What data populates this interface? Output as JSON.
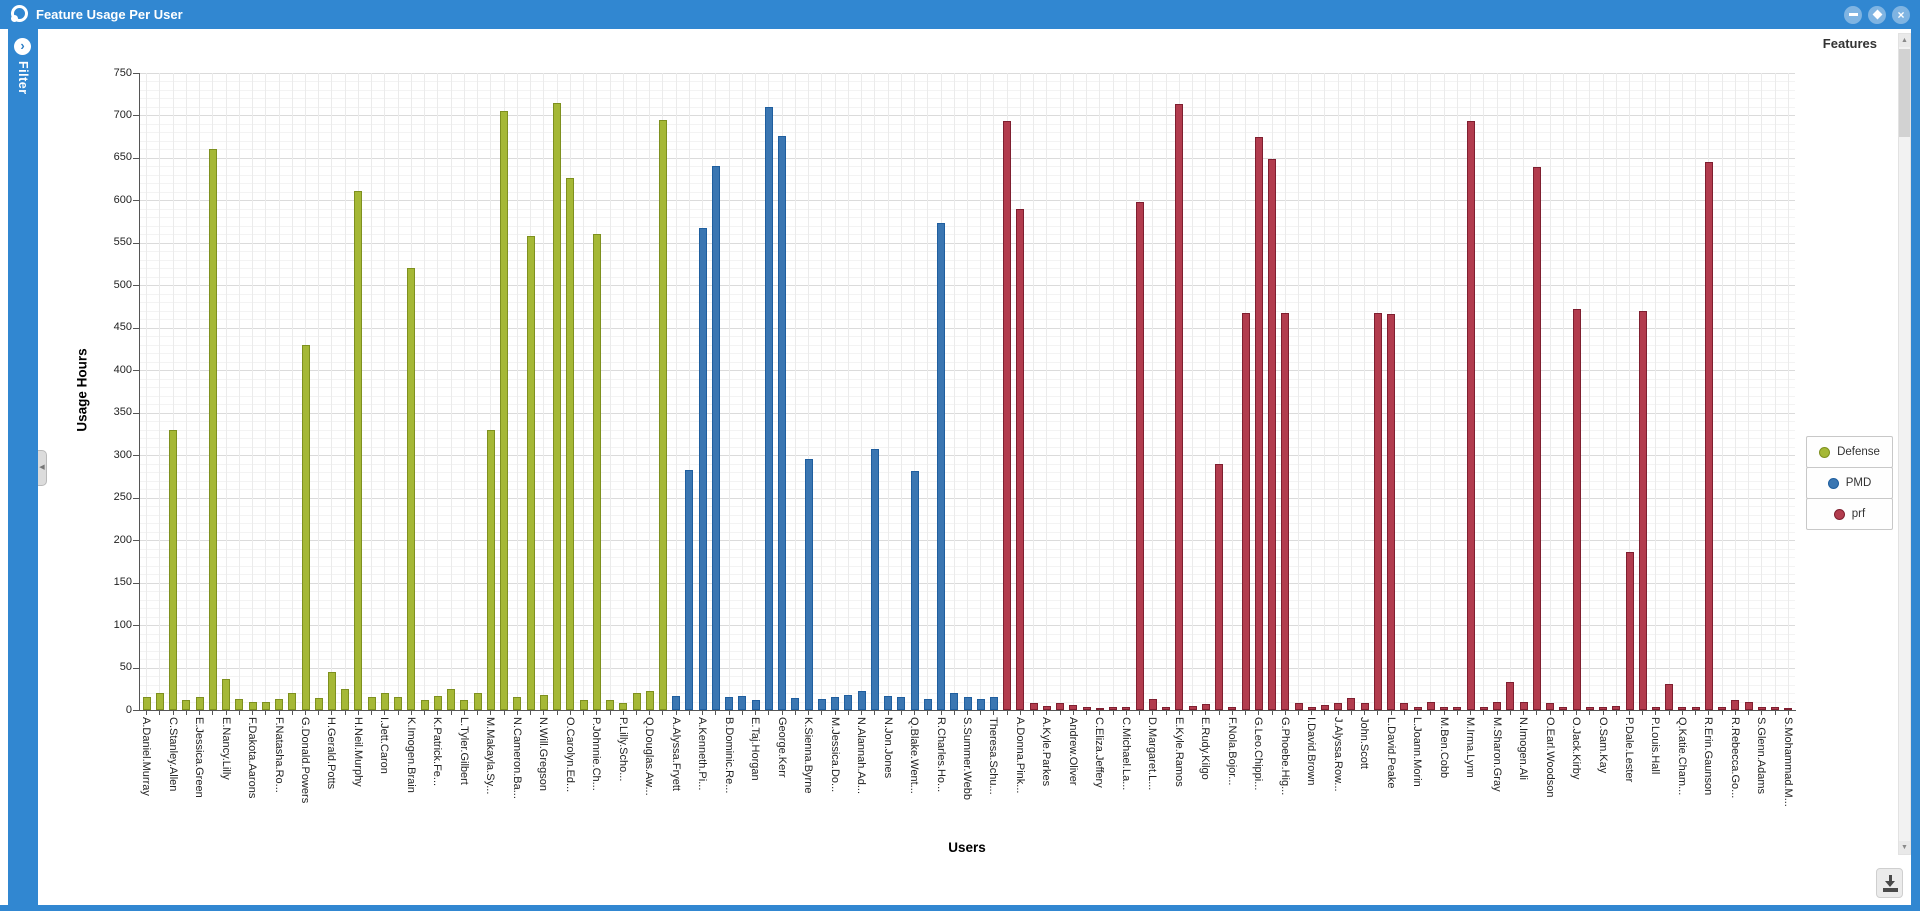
{
  "window": {
    "title": "Feature Usage Per User",
    "minimize_label": "minimize",
    "maximize_label": "maximize",
    "close_label": "close"
  },
  "sidebar": {
    "label": "Filter",
    "expand_icon": "chevron-right-icon"
  },
  "panel_header": "Features",
  "icons": {
    "app": "swirl-logo-icon",
    "download": "download-icon",
    "scroll_up": "up-arrow-icon",
    "scroll_down": "down-arrow-icon",
    "splitter": "collapse-left-icon"
  },
  "colors": {
    "titlebar": "#3187d1",
    "defense_fill": "#a5b836",
    "defense_border": "#7e901f",
    "pmd_fill": "#3a76b2",
    "pmd_border": "#1f5e9e",
    "prf_fill": "#b23c4e",
    "prf_border": "#7f1f30"
  },
  "chart_data": {
    "type": "bar",
    "title": "Feature Usage Per User",
    "xlabel": "Users",
    "ylabel": "Usage Hours",
    "ylim": [
      0,
      750
    ],
    "ytick_step": 50,
    "minor_step": 10,
    "grid": true,
    "legend_position": "right",
    "label_every": 2,
    "series": [
      {
        "name": "Defense",
        "color": "#a5b836",
        "border": "#7e901f",
        "range": [
          0,
          39
        ]
      },
      {
        "name": "PMD",
        "color": "#3a76b2",
        "border": "#1f5e9e",
        "range": [
          40,
          64
        ]
      },
      {
        "name": "prf",
        "color": "#b23c4e",
        "border": "#7f1f30",
        "range": [
          65,
          124
        ]
      }
    ],
    "x_labels": [
      "A.Daniel.Murray",
      "C.Stanley.Allen",
      "E.Jessica.Green",
      "E.Nancy.Lilly",
      "F.Dakota.Aarons",
      "F.Natasha.Ro...",
      "G.Donald.Powers",
      "H.Gerald.Potts",
      "H.Neil.Murphy",
      "I.Jett.Caron",
      "K.Imogen.Brain",
      "K.Patrick.Fe...",
      "L.Tyler.Gilbert",
      "M.Makayla.Sy...",
      "N.Cameron.Ba...",
      "N.Will.Gregson",
      "O.Carolyn.Ed...",
      "P.Johnnie.Ch...",
      "P.Lilly.Scho...",
      "Q.Douglas.Aw...",
      "A.Alyssa.Fryett",
      "A.Kenneth.Pi...",
      "B.Dominic.Re...",
      "E.Taj.Horgan",
      "George.Kerr",
      "K.Sienna.Byrne",
      "M.Jessica.Do...",
      "N.Alannah.Ad...",
      "N.Jon.Jones",
      "Q.Blake.Went...",
      "R.Charles.Ho...",
      "S.Summer.Webb",
      "Theresa.Schu...",
      "A.Donna.Pink...",
      "A.Kyle.Parkes",
      "Andrew.Oliver",
      "C.Eliza.Jeffery",
      "C.Michael.La...",
      "D.Margaret.L...",
      "E.Kyle.Ramos",
      "E.Rudy.Kilgo",
      "F.Nola.Bojor...",
      "G.Leo.Chippi...",
      "G.Phoebe.Hig...",
      "I.David.Brown",
      "J.Alyssa.Row...",
      "John.Scott",
      "L.David.Peake",
      "L.Joann.Morin",
      "M.Ben.Cobb",
      "M.Irma.Lynn",
      "M.Sharon.Gray",
      "N.Imogen.Ali",
      "O.Earl.Woodson",
      "O.Jack.Kirby",
      "O.Sam.Kay",
      "P.Dale.Lester",
      "P.Louis.Hall",
      "Q.Katie.Cham...",
      "R.Erin.Gaunson",
      "R.Rebecca.Go...",
      "S.Glenn.Adams",
      "S.Mohammad.M..."
    ],
    "values": [
      15,
      20,
      330,
      12,
      15,
      660,
      37,
      13,
      10,
      10,
      13,
      20,
      430,
      14,
      45,
      25,
      611,
      15,
      20,
      15,
      520,
      12,
      17,
      25,
      12,
      20,
      330,
      705,
      15,
      558,
      18,
      715,
      626,
      12,
      560,
      12,
      8,
      20,
      22,
      695,
      17,
      283,
      567,
      640,
      15,
      17,
      12,
      710,
      676,
      14,
      296,
      13,
      15,
      18,
      22,
      307,
      16,
      15,
      281,
      13,
      573,
      20,
      15,
      13,
      15,
      693,
      590,
      8,
      5,
      8,
      6,
      3,
      2,
      4,
      3,
      598,
      13,
      4,
      713,
      5,
      7,
      290,
      3,
      467,
      675,
      649,
      467,
      8,
      4,
      6,
      8,
      14,
      8,
      468,
      466,
      8,
      4,
      9,
      3,
      4,
      693,
      4,
      10,
      33,
      10,
      639,
      8,
      4,
      472,
      4,
      4,
      5,
      186,
      470,
      4,
      31,
      4,
      4,
      645,
      4,
      12,
      10,
      4,
      3,
      2
    ]
  }
}
